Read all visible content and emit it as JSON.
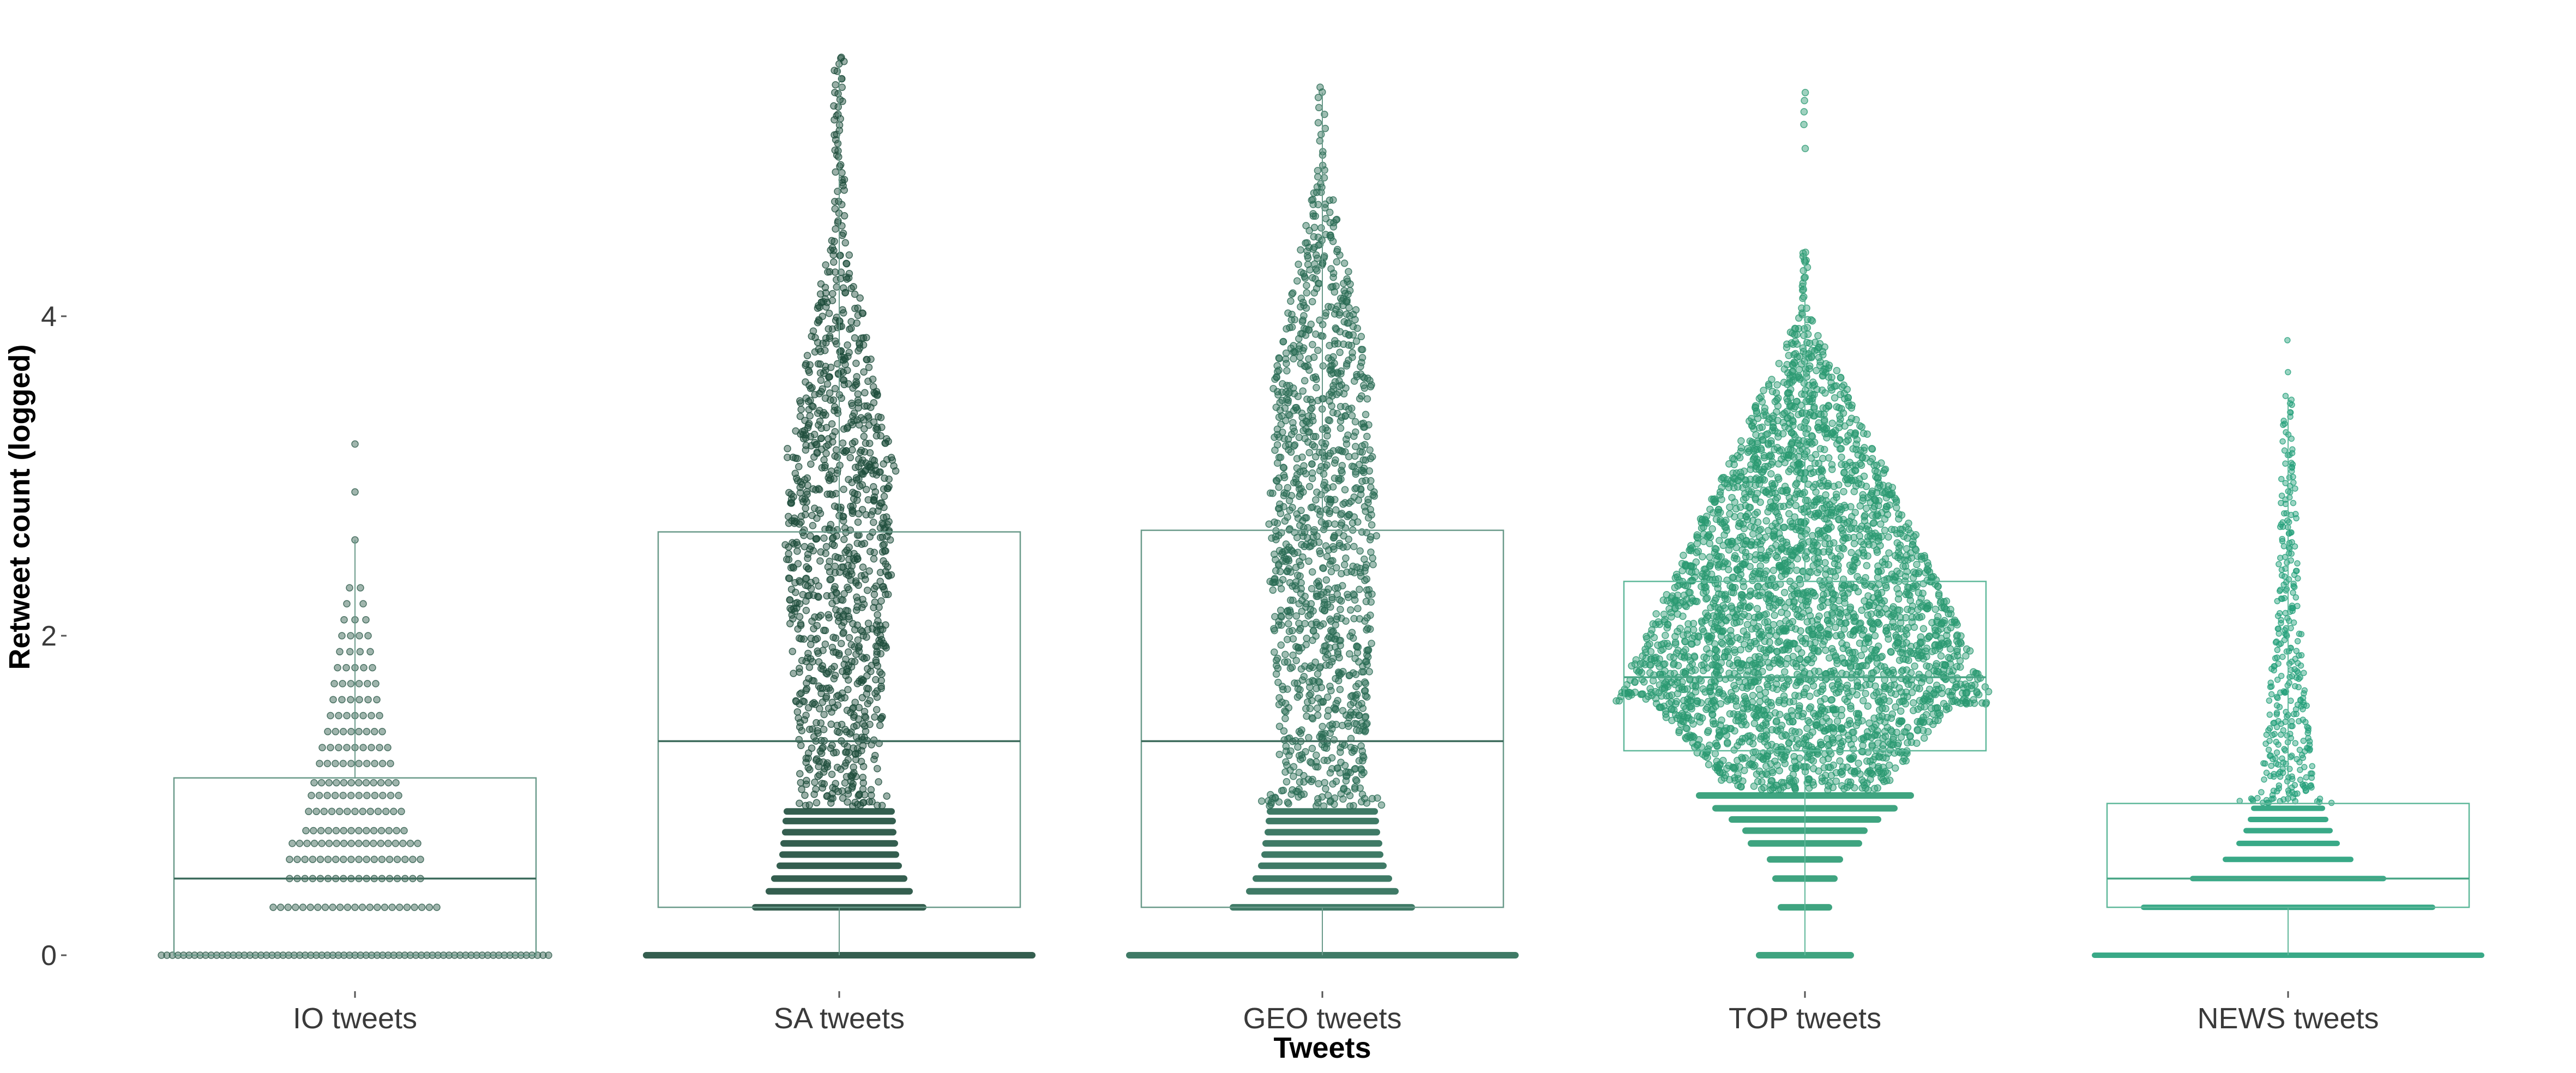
{
  "chart_data": {
    "type": "beeswarm-boxplot",
    "xlabel": "Tweets",
    "ylabel": "Retweet count (logged)",
    "ylim": [
      0,
      5.7
    ],
    "yticks": [
      0,
      2,
      4
    ],
    "ytick_labels": [
      "0",
      "2",
      "4"
    ],
    "grid": false,
    "categories": [
      "IO tweets",
      "SA tweets",
      "GEO tweets",
      "TOP tweets",
      "NEWS tweets"
    ],
    "series": [
      {
        "category": "IO tweets",
        "color": "#2d5a4a",
        "box": {
          "min": 0,
          "q1": 0,
          "median": 0.48,
          "q3": 1.11,
          "max": 2.6
        },
        "max_value": 3.23
      },
      {
        "category": "SA tweets",
        "color": "#1e4d3c",
        "box": {
          "min": 0,
          "q1": 0.3,
          "median": 1.34,
          "q3": 2.65,
          "max": 5.6
        },
        "max_value": 5.65
      },
      {
        "category": "GEO tweets",
        "color": "#2a6c55",
        "box": {
          "min": 0,
          "q1": 0.3,
          "median": 1.34,
          "q3": 2.66,
          "max": 5.4
        },
        "max_value": 5.45
      },
      {
        "category": "TOP tweets",
        "color": "#2a9a72",
        "box": {
          "min": 0,
          "q1": 1.28,
          "median": 1.74,
          "q3": 2.34,
          "max": 4.4
        },
        "max_value": 5.4
      },
      {
        "category": "NEWS tweets",
        "color": "#24a07a",
        "box": {
          "min": 0,
          "q1": 0.3,
          "median": 0.48,
          "q3": 0.95,
          "max": 3.5
        },
        "max_value": 3.85
      }
    ]
  }
}
